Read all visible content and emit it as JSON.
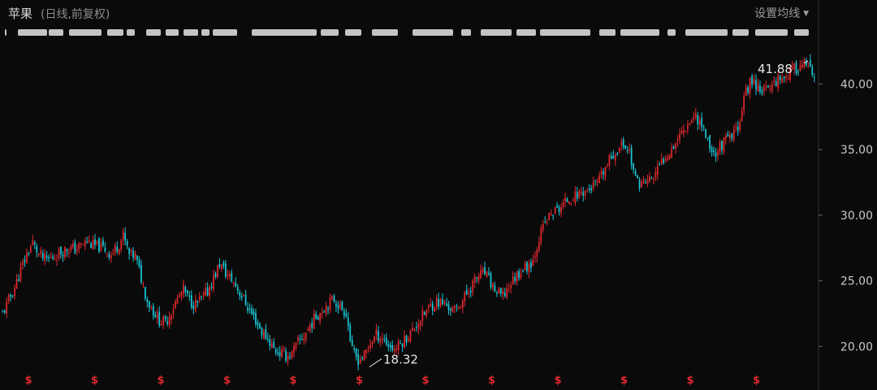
{
  "header": {
    "title": "苹果",
    "subtitle": "(日线,前复权)",
    "setting_label": "设置均线"
  },
  "colors": {
    "background": "#0a0a0a",
    "up": "#e0282e",
    "down": "#19c7d6",
    "axis_text": "#c9c9c9",
    "event_marker": "#e0282e"
  },
  "chart_data": {
    "type": "candlestick",
    "title": "",
    "ylim": [
      17.3,
      43.3
    ],
    "yticks": [
      20,
      25,
      30,
      35,
      40
    ],
    "ytick_labels": [
      "20.00",
      "25.00",
      "30.00",
      "35.00",
      "40.00"
    ],
    "close_series": [
      22.5,
      23.5,
      24.5,
      25.8,
      27.0,
      27.9,
      27.0,
      26.6,
      26.7,
      27.0,
      27.3,
      27.5,
      27.4,
      27.7,
      28.0,
      27.7,
      27.6,
      27.4,
      27.0,
      27.6,
      28.4,
      27.0,
      26.9,
      25.2,
      23.5,
      22.7,
      22.0,
      21.8,
      22.7,
      23.6,
      24.3,
      23.5,
      23.2,
      23.6,
      24.2,
      25.2,
      26.3,
      25.6,
      25.1,
      24.4,
      23.6,
      22.7,
      22.0,
      21.1,
      20.6,
      19.8,
      19.5,
      19.3,
      19.4,
      20.3,
      20.8,
      21.6,
      22.3,
      22.8,
      23.3,
      23.6,
      23.0,
      22.6,
      19.6,
      19.0,
      19.3,
      20.3,
      20.9,
      20.7,
      20.1,
      19.8,
      20.2,
      20.7,
      21.2,
      21.9,
      22.5,
      23.1,
      23.4,
      23.3,
      23.0,
      22.7,
      23.3,
      24.0,
      24.8,
      25.4,
      25.6,
      24.8,
      24.1,
      23.8,
      24.6,
      25.3,
      25.8,
      26.1,
      26.6,
      28.3,
      29.4,
      30.1,
      30.4,
      30.8,
      31.3,
      31.4,
      31.8,
      31.9,
      32.2,
      32.6,
      33.6,
      34.4,
      35.0,
      35.4,
      34.9,
      32.7,
      32.4,
      32.6,
      32.9,
      33.7,
      34.6,
      35.1,
      35.9,
      36.6,
      37.2,
      37.6,
      36.9,
      35.7,
      34.6,
      35.2,
      35.7,
      35.9,
      36.8,
      38.9,
      40.2,
      40.0,
      39.6,
      39.5,
      40.2,
      40.5,
      40.6,
      41.0,
      41.3,
      41.5,
      41.1,
      39.5
    ],
    "x_labels": [],
    "annotations": [
      {
        "text": "41.88",
        "kind": "max",
        "value": 41.88
      },
      {
        "text": "18.32",
        "kind": "min",
        "value": 18.32
      }
    ],
    "event_marker": "$",
    "event_marker_count": 12,
    "top_event_strip": "masked",
    "grid": false,
    "legend": "none"
  }
}
